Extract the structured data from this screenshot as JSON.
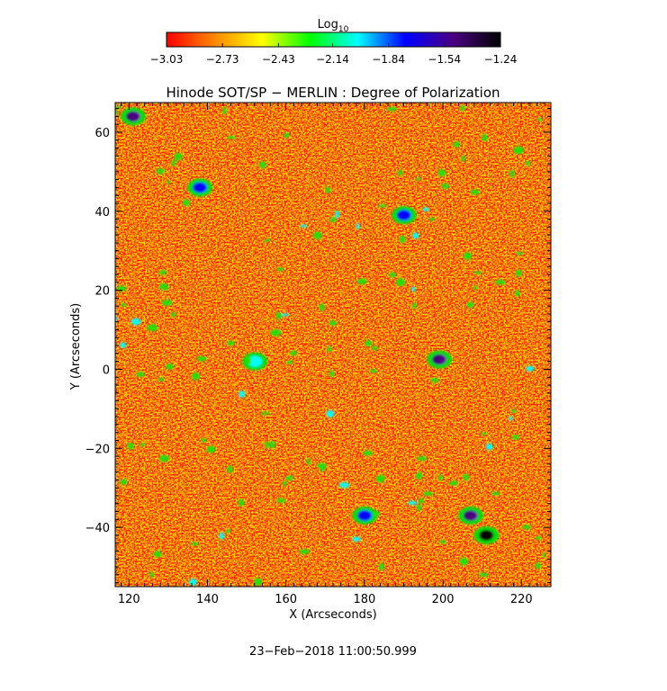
{
  "chart_data": {
    "type": "heatmap",
    "title": "Hinode SOT/SP − MERLIN : Degree of Polarization",
    "xlabel": "X (Arcseconds)",
    "ylabel": "Y (Arcseconds)",
    "xlim": [
      116.5,
      227.5
    ],
    "ylim": [
      -55,
      67.5
    ],
    "x_ticks": [
      {
        "value": 120,
        "label": "120"
      },
      {
        "value": 140,
        "label": "140"
      },
      {
        "value": 160,
        "label": "160"
      },
      {
        "value": 180,
        "label": "180"
      },
      {
        "value": 200,
        "label": "200"
      },
      {
        "value": 220,
        "label": "220"
      }
    ],
    "y_ticks": [
      {
        "value": -40,
        "label": "−40"
      },
      {
        "value": -20,
        "label": "−20"
      },
      {
        "value": 0,
        "label": "0"
      },
      {
        "value": 20,
        "label": "20"
      },
      {
        "value": 40,
        "label": "40"
      },
      {
        "value": 60,
        "label": "60"
      }
    ],
    "colorbar": {
      "label": "Log",
      "label_subscript": "10",
      "min": -3.03,
      "max": -1.24,
      "ticks": [
        {
          "value": -3.03,
          "label": "−3.03"
        },
        {
          "value": -2.73,
          "label": "−2.73"
        },
        {
          "value": -2.43,
          "label": "−2.43"
        },
        {
          "value": -2.14,
          "label": "−2.14"
        },
        {
          "value": -1.84,
          "label": "−1.84"
        },
        {
          "value": -1.54,
          "label": "−1.54"
        },
        {
          "value": -1.24,
          "label": "−1.24"
        }
      ],
      "colors": [
        "#ff0000",
        "#ff8800",
        "#ffff00",
        "#00ff00",
        "#00ffff",
        "#0000ff",
        "#4b0082",
        "#000000"
      ]
    },
    "features": [
      {
        "name": "network patch",
        "x": 211,
        "y": -42,
        "level": -1.24
      },
      {
        "name": "network patch",
        "x": 199,
        "y": 2.5,
        "level": -1.5
      },
      {
        "name": "network patch",
        "x": 121,
        "y": 64,
        "level": -1.4
      },
      {
        "name": "network patch",
        "x": 180,
        "y": -37,
        "level": -1.7
      },
      {
        "name": "network patch",
        "x": 207,
        "y": -37,
        "level": -1.6
      },
      {
        "name": "network patch",
        "x": 138,
        "y": 46,
        "level": -1.8
      },
      {
        "name": "network patch",
        "x": 190,
        "y": 39,
        "level": -1.8
      },
      {
        "name": "network patch",
        "x": 152,
        "y": 2,
        "level": -1.9
      }
    ]
  },
  "timestamp": "23−Feb−2018  11:00:50.999"
}
